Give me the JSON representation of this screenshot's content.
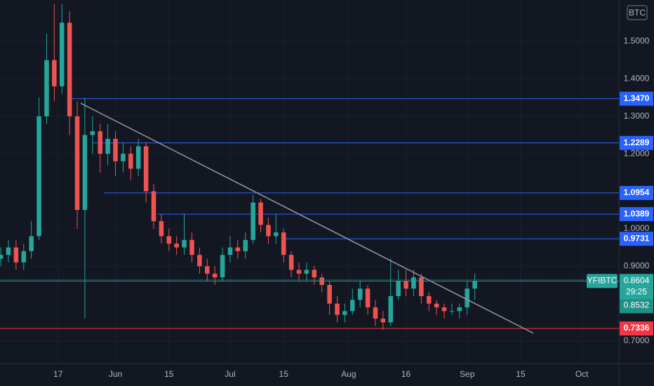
{
  "chart_data": {
    "type": "candlestick",
    "currency": "BTC",
    "symbol": "YFIBTC",
    "countdown": "29:25",
    "second_price": "0.8532",
    "up_color": "#26a69a",
    "down_color": "#ef5350",
    "x": [
      1,
      3,
      5,
      7,
      9,
      11,
      13,
      15,
      17,
      19,
      21,
      23,
      25,
      27,
      29,
      31,
      33,
      35,
      37,
      39,
      41,
      43,
      45,
      47,
      49,
      51,
      53,
      55,
      57,
      59,
      61,
      63,
      65,
      67,
      69,
      71,
      73,
      75,
      77,
      79,
      81,
      83,
      85,
      87,
      89,
      91,
      93,
      95,
      97,
      99,
      101,
      103,
      105,
      107,
      109,
      111,
      113,
      115,
      117,
      119,
      121,
      123,
      125
    ],
    "open": [
      0.92,
      0.93,
      0.95,
      0.91,
      0.94,
      0.98,
      1.3,
      1.45,
      1.38,
      1.55,
      1.3,
      1.05,
      1.25,
      1.26,
      1.2,
      1.24,
      1.18,
      1.2,
      1.16,
      1.22,
      1.1,
      1.02,
      0.98,
      0.96,
      0.95,
      0.97,
      0.93,
      0.9,
      0.88,
      0.87,
      0.93,
      0.95,
      0.94,
      0.97,
      1.07,
      1.01,
      0.98,
      0.99,
      0.93,
      0.89,
      0.88,
      0.89,
      0.87,
      0.85,
      0.8,
      0.77,
      0.78,
      0.81,
      0.84,
      0.79,
      0.76,
      0.75,
      0.82,
      0.86,
      0.84,
      0.87,
      0.82,
      0.8,
      0.79,
      0.78,
      0.78,
      0.79,
      0.84
    ],
    "high": [
      0.95,
      0.97,
      0.97,
      0.96,
      1.02,
      1.35,
      1.52,
      1.6,
      1.6,
      1.58,
      1.34,
      1.35,
      1.3,
      1.28,
      1.28,
      1.26,
      1.23,
      1.22,
      1.24,
      1.23,
      1.12,
      1.04,
      1.0,
      0.98,
      1.04,
      0.99,
      0.95,
      0.92,
      0.9,
      0.95,
      0.98,
      0.97,
      0.99,
      1.09,
      1.08,
      1.03,
      1.04,
      1.0,
      0.94,
      0.91,
      0.91,
      0.9,
      0.88,
      0.86,
      0.82,
      0.8,
      0.84,
      0.86,
      0.85,
      0.81,
      0.78,
      0.92,
      0.89,
      0.89,
      0.89,
      0.88,
      0.83,
      0.81,
      0.8,
      0.8,
      0.8,
      0.86,
      0.88
    ],
    "low": [
      0.9,
      0.91,
      0.89,
      0.89,
      0.92,
      0.97,
      1.28,
      1.34,
      1.36,
      1.25,
      1.0,
      0.76,
      1.2,
      1.15,
      1.17,
      1.14,
      1.15,
      1.13,
      1.14,
      1.07,
      1.0,
      0.96,
      0.94,
      0.93,
      0.93,
      0.91,
      0.88,
      0.86,
      0.85,
      0.86,
      0.91,
      0.92,
      0.92,
      0.96,
      0.99,
      0.96,
      0.96,
      0.91,
      0.87,
      0.86,
      0.86,
      0.85,
      0.83,
      0.77,
      0.75,
      0.75,
      0.77,
      0.79,
      0.77,
      0.74,
      0.73,
      0.74,
      0.81,
      0.82,
      0.82,
      0.8,
      0.78,
      0.77,
      0.76,
      0.77,
      0.76,
      0.77,
      0.81
    ],
    "close": [
      0.93,
      0.95,
      0.91,
      0.94,
      0.98,
      1.3,
      1.45,
      1.38,
      1.55,
      1.3,
      1.05,
      1.25,
      1.26,
      1.2,
      1.24,
      1.18,
      1.2,
      1.16,
      1.22,
      1.1,
      1.02,
      0.98,
      0.96,
      0.95,
      0.97,
      0.93,
      0.9,
      0.88,
      0.87,
      0.93,
      0.95,
      0.94,
      0.97,
      1.07,
      1.01,
      0.98,
      0.99,
      0.93,
      0.89,
      0.88,
      0.89,
      0.87,
      0.85,
      0.8,
      0.77,
      0.78,
      0.81,
      0.84,
      0.79,
      0.76,
      0.75,
      0.82,
      0.86,
      0.84,
      0.87,
      0.82,
      0.8,
      0.79,
      0.78,
      0.78,
      0.79,
      0.84,
      0.8604
    ],
    "xlim": [
      0.8,
      162.7
    ],
    "xticks": [
      {
        "value": 16,
        "label": "17"
      },
      {
        "value": 31,
        "label": "Jun"
      },
      {
        "value": 45,
        "label": "15"
      },
      {
        "value": 61,
        "label": "Jul"
      },
      {
        "value": 75,
        "label": "15"
      },
      {
        "value": 92,
        "label": "Aug"
      },
      {
        "value": 107,
        "label": "16"
      },
      {
        "value": 123,
        "label": "Sep"
      },
      {
        "value": 137,
        "label": "15"
      },
      {
        "value": 153,
        "label": "Oct"
      }
    ],
    "ylim": [
      0.64,
      1.6105
    ],
    "yticks": [
      {
        "value": 1.5,
        "label": "1.5000"
      },
      {
        "value": 1.4,
        "label": "1.4000"
      },
      {
        "value": 1.3,
        "label": "1.3000"
      },
      {
        "value": 1.2,
        "label": "1.2000"
      },
      {
        "value": 1.0,
        "label": "1.0000"
      },
      {
        "value": 0.9,
        "label": "0.9000"
      },
      {
        "value": 0.7,
        "label": "0.7000"
      }
    ],
    "levels": [
      {
        "value": 1.347,
        "label": "1.3470",
        "color": "#2962ff",
        "from": 19
      },
      {
        "value": 1.2289,
        "label": "1.2289",
        "color": "#2962ff",
        "from": 25
      },
      {
        "value": 1.0954,
        "label": "1.0954",
        "color": "#2962ff",
        "from": 28
      },
      {
        "value": 1.0389,
        "label": "1.0389",
        "color": "#2962ff",
        "from": 42
      },
      {
        "value": 0.9731,
        "label": "0.9731",
        "color": "#2962ff",
        "from": 75
      },
      {
        "value": 0.7336,
        "label": "0.7336",
        "color": "#f23645",
        "from": 0.8
      }
    ],
    "last_price": {
      "value": 0.8604,
      "label": "0.8604",
      "color": "#26a69a"
    },
    "trendline": {
      "x": [
        21.9,
        140.3
      ],
      "y": [
        1.335,
        0.721
      ],
      "color": "#9598a1"
    }
  }
}
